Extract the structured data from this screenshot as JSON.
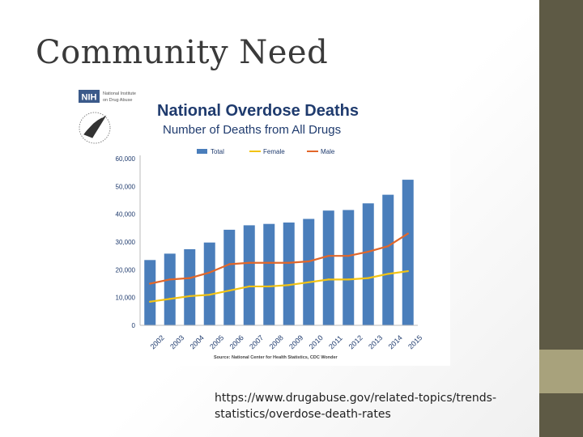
{
  "slide": {
    "title": "Community Need",
    "source_url_line1": "https://www.drugabuse.gov/related-topics/trends-",
    "source_url_line2": "statistics/overdose-death-rates"
  },
  "theme": {
    "side_top": "#5e5a45",
    "side_mid": "#a8a27c",
    "side_bot": "#5e5a45"
  },
  "logos": {
    "nih_badge": "NIH",
    "nih_text_1": "National Institute",
    "nih_text_2": "on Drug Abuse",
    "hhs_icon": "hhs-eagle-seal-icon"
  },
  "chart_data": {
    "type": "bar",
    "title": "National Overdose Deaths",
    "subtitle": "Number of Deaths from All Drugs",
    "source": "Source: National Center for Health Statistics, CDC Wonder",
    "categories": [
      "2002",
      "2003",
      "2004",
      "2005",
      "2006",
      "2007",
      "2008",
      "2009",
      "2010",
      "2011",
      "2012",
      "2013",
      "2014",
      "2015"
    ],
    "ylim": [
      0,
      60000
    ],
    "yticks": [
      0,
      10000,
      20000,
      30000,
      40000,
      50000,
      60000
    ],
    "ytick_labels": [
      "0",
      "10,000",
      "20,000",
      "30,000",
      "40,000",
      "50,000",
      "60,000"
    ],
    "legend_position": "top",
    "grid": false,
    "series": [
      {
        "name": "Total",
        "kind": "bar",
        "color": "#4a7ebb",
        "values": [
          23500,
          25800,
          27400,
          29800,
          34400,
          36000,
          36500,
          37000,
          38300,
          41300,
          41500,
          43900,
          47000,
          52400
        ]
      },
      {
        "name": "Female",
        "kind": "line",
        "color": "#f2c314",
        "values": [
          8500,
          9500,
          10500,
          11000,
          12500,
          14000,
          14000,
          14500,
          15500,
          16500,
          16500,
          17000,
          18500,
          19500
        ]
      },
      {
        "name": "Male",
        "kind": "line",
        "color": "#e2672a",
        "values": [
          15000,
          16500,
          17000,
          19000,
          22000,
          22500,
          22500,
          22500,
          23000,
          25000,
          25000,
          26500,
          28500,
          33000
        ]
      }
    ]
  }
}
